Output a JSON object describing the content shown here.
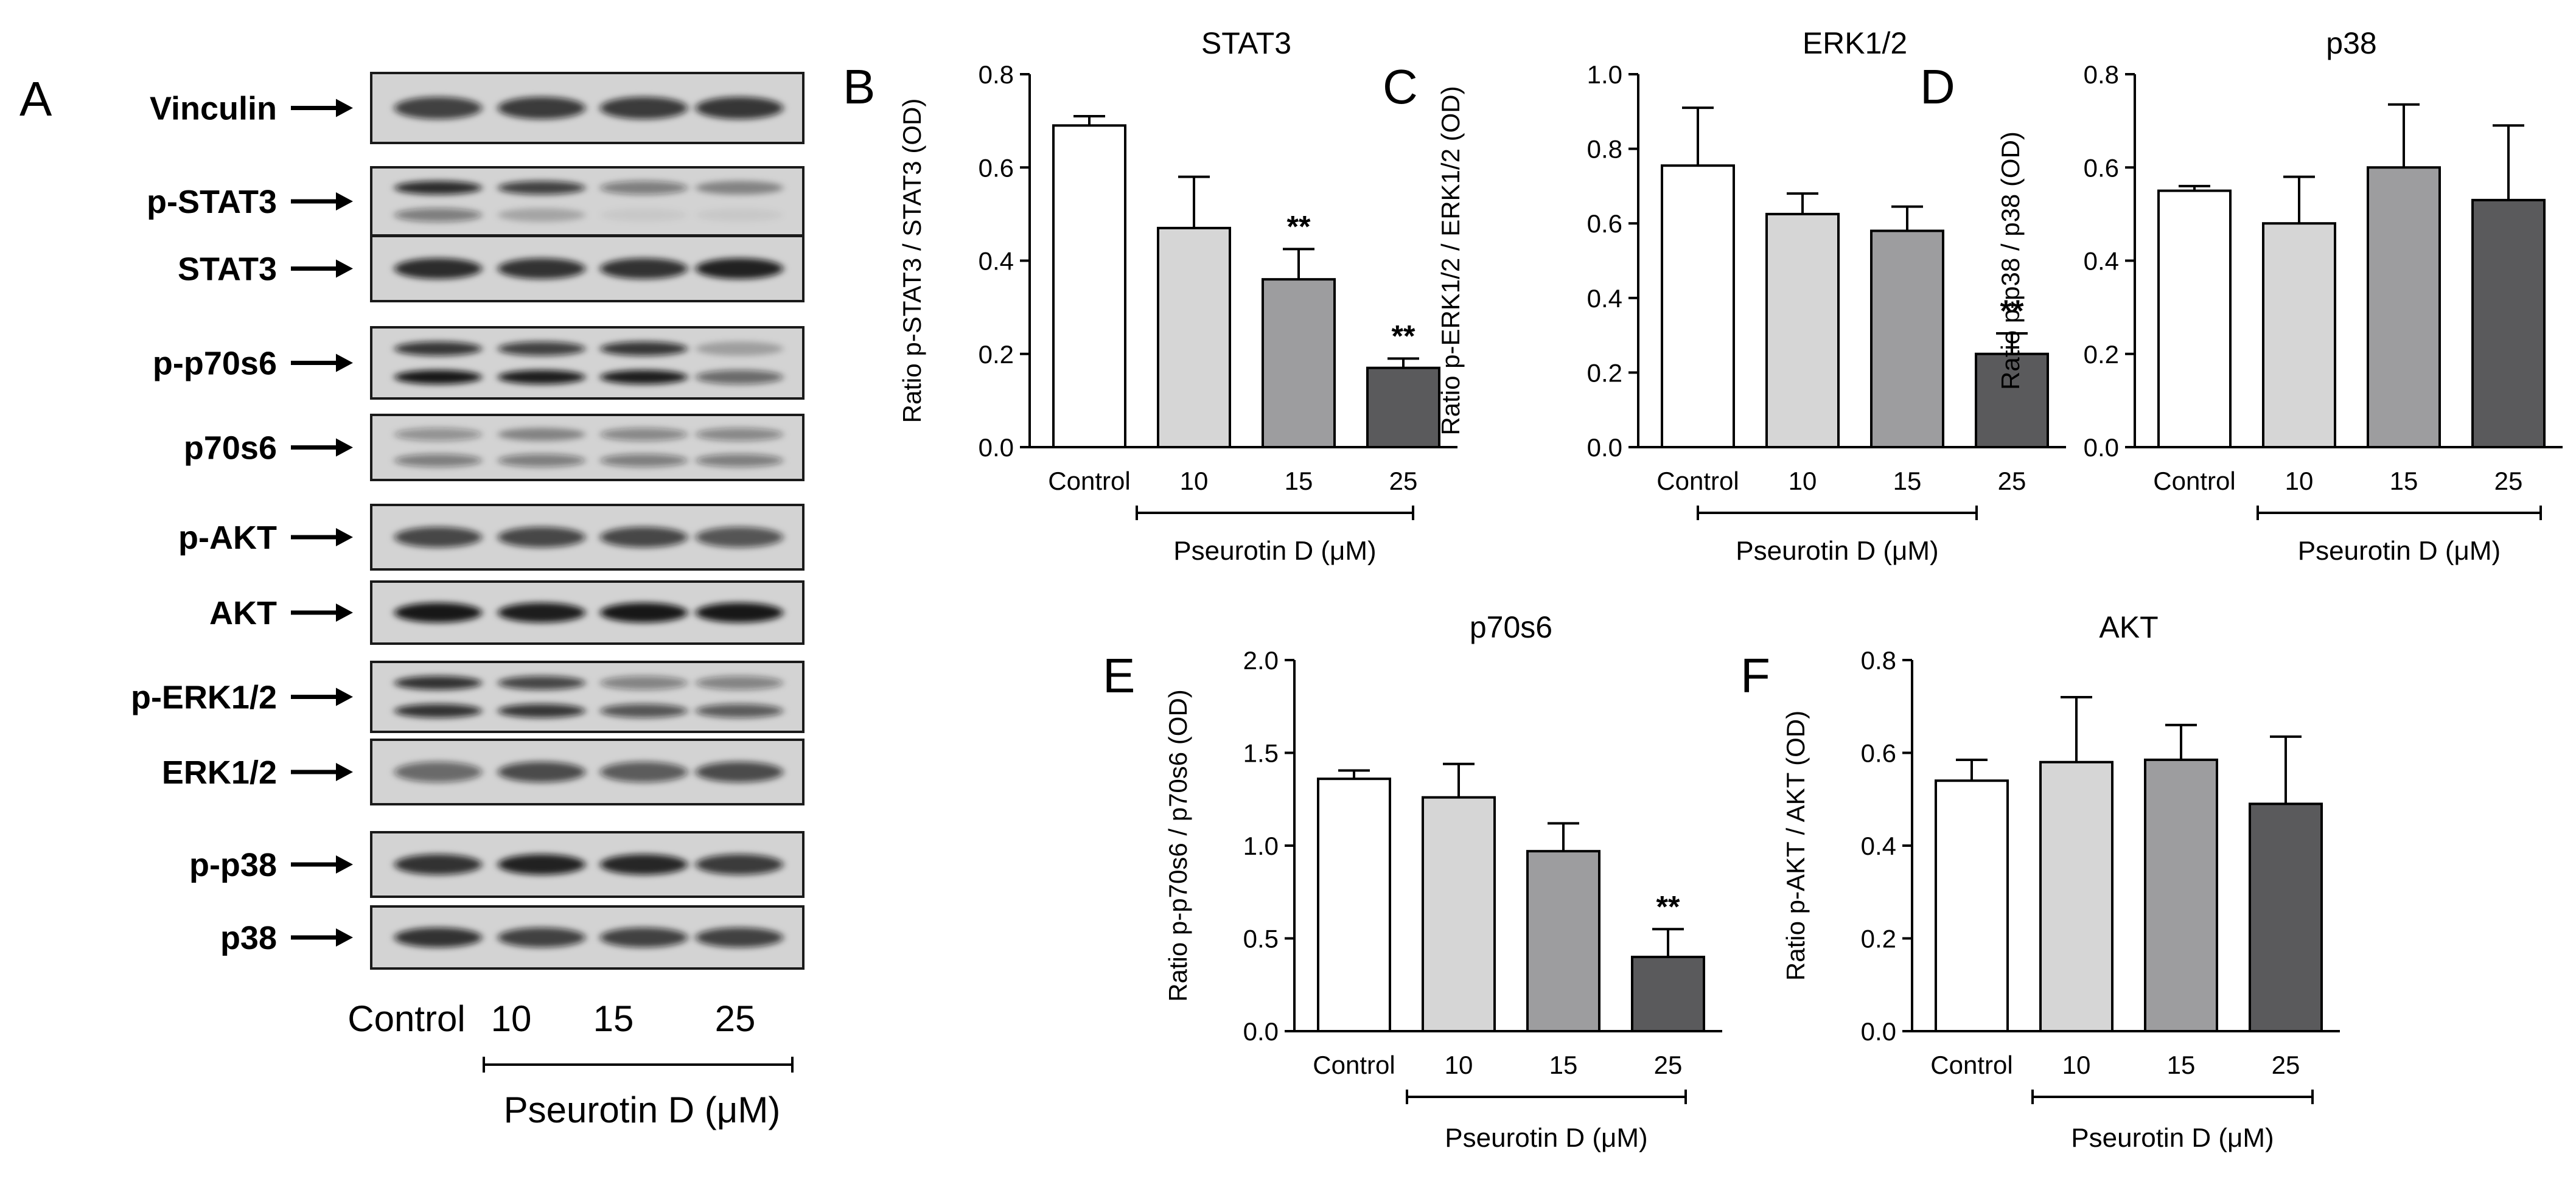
{
  "blot": {
    "letter": "A",
    "rows": [
      "Vinculin",
      "p-STAT3",
      "STAT3",
      "p-p70s6",
      "p70s6",
      "p-AKT",
      "AKT",
      "p-ERK1/2",
      "ERK1/2",
      "p-p38",
      "p38"
    ],
    "lanes": [
      "Control",
      "10",
      "15",
      "25"
    ],
    "group_label": "Pseurotin D (μM)"
  },
  "chart_data": [
    {
      "letter": "B",
      "type": "bar",
      "title": "STAT3",
      "ylabel": "Ratio p-STAT3 / STAT3 (OD)",
      "xlabel": "Pseurotin D (μM)",
      "categories": [
        "Control",
        "10",
        "15",
        "25"
      ],
      "values": [
        0.69,
        0.47,
        0.36,
        0.17
      ],
      "errors": [
        0.02,
        0.11,
        0.065,
        0.02
      ],
      "significance": [
        "",
        "",
        "**",
        "**"
      ],
      "ylim": [
        0,
        0.8
      ],
      "yticks": [
        "0.0",
        "0.2",
        "0.4",
        "0.6",
        "0.8"
      ],
      "bar_colors": [
        "#ffffff",
        "#d6d6d6",
        "#9d9d9f",
        "#5a5a5c"
      ]
    },
    {
      "letter": "C",
      "type": "bar",
      "title": "ERK1/2",
      "ylabel": "Ratio p-ERK1/2 / ERK1/2 (OD)",
      "xlabel": "Pseurotin D (μM)",
      "categories": [
        "Control",
        "10",
        "15",
        "25"
      ],
      "values": [
        0.755,
        0.625,
        0.58,
        0.25
      ],
      "errors": [
        0.155,
        0.055,
        0.065,
        0.055
      ],
      "significance": [
        "",
        "",
        "",
        "**"
      ],
      "ylim": [
        0,
        1.0
      ],
      "yticks": [
        "0.0",
        "0.2",
        "0.4",
        "0.6",
        "0.8",
        "1.0"
      ],
      "bar_colors": [
        "#ffffff",
        "#d6d6d6",
        "#9d9d9f",
        "#5a5a5c"
      ]
    },
    {
      "letter": "D",
      "type": "bar",
      "title": "p38",
      "ylabel": "Ratio p-p38 / p38 (OD)",
      "xlabel": "Pseurotin D (μM)",
      "categories": [
        "Control",
        "10",
        "15",
        "25"
      ],
      "values": [
        0.55,
        0.48,
        0.6,
        0.53
      ],
      "errors": [
        0.01,
        0.1,
        0.135,
        0.16
      ],
      "significance": [
        "",
        "",
        "",
        ""
      ],
      "ylim": [
        0,
        0.8
      ],
      "yticks": [
        "0.0",
        "0.2",
        "0.4",
        "0.6",
        "0.8"
      ],
      "bar_colors": [
        "#ffffff",
        "#d6d6d6",
        "#9d9d9f",
        "#5a5a5c"
      ]
    },
    {
      "letter": "E",
      "type": "bar",
      "title": "p70s6",
      "ylabel": "Ratio p-p70s6 / p70s6 (OD)",
      "xlabel": "Pseurotin D (μM)",
      "categories": [
        "Control",
        "10",
        "15",
        "25"
      ],
      "values": [
        1.36,
        1.26,
        0.97,
        0.4
      ],
      "errors": [
        0.045,
        0.18,
        0.15,
        0.15
      ],
      "significance": [
        "",
        "",
        "",
        "**"
      ],
      "ylim": [
        0,
        2.0
      ],
      "yticks": [
        "0.0",
        "0.5",
        "1.0",
        "1.5",
        "2.0"
      ],
      "bar_colors": [
        "#ffffff",
        "#d6d6d6",
        "#9d9d9f",
        "#5a5a5c"
      ]
    },
    {
      "letter": "F",
      "type": "bar",
      "title": "AKT",
      "ylabel": "Ratio p-AKT / AKT (OD)",
      "xlabel": "Pseurotin D (μM)",
      "categories": [
        "Control",
        "10",
        "15",
        "25"
      ],
      "values": [
        0.54,
        0.58,
        0.585,
        0.49
      ],
      "errors": [
        0.045,
        0.14,
        0.075,
        0.145
      ],
      "significance": [
        "",
        "",
        "",
        ""
      ],
      "ylim": [
        0,
        0.8
      ],
      "yticks": [
        "0.0",
        "0.2",
        "0.4",
        "0.6",
        "0.8"
      ],
      "bar_colors": [
        "#ffffff",
        "#d6d6d6",
        "#9d9d9f",
        "#5a5a5c"
      ]
    }
  ]
}
